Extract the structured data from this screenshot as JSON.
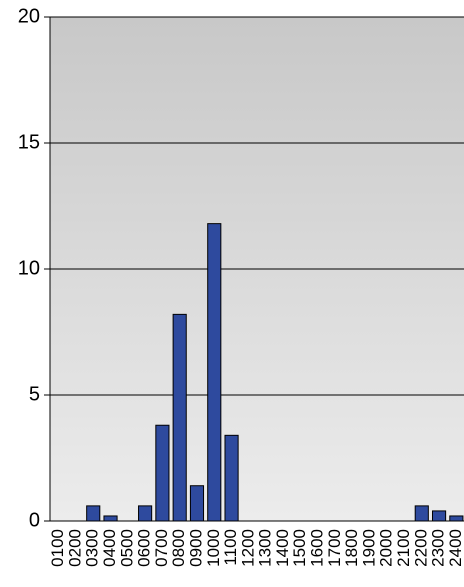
{
  "chart_data": {
    "type": "bar",
    "categories": [
      "0100",
      "0200",
      "0300",
      "0400",
      "0500",
      "0600",
      "0700",
      "0800",
      "0900",
      "1000",
      "1100",
      "1200",
      "1300",
      "1400",
      "1500",
      "1600",
      "1700",
      "1800",
      "1900",
      "2000",
      "2100",
      "2200",
      "2300",
      "2400"
    ],
    "values": [
      0,
      0,
      0.6,
      0.2,
      0,
      0.6,
      3.8,
      8.2,
      1.4,
      11.8,
      3.4,
      0,
      0,
      0,
      0,
      0,
      0,
      0,
      0,
      0,
      0,
      0.6,
      0.4,
      0.2
    ],
    "color": "#2e4a9e",
    "ylim": [
      0,
      20
    ],
    "yticks": [
      0,
      5,
      10,
      15,
      20
    ],
    "grid": true
  }
}
